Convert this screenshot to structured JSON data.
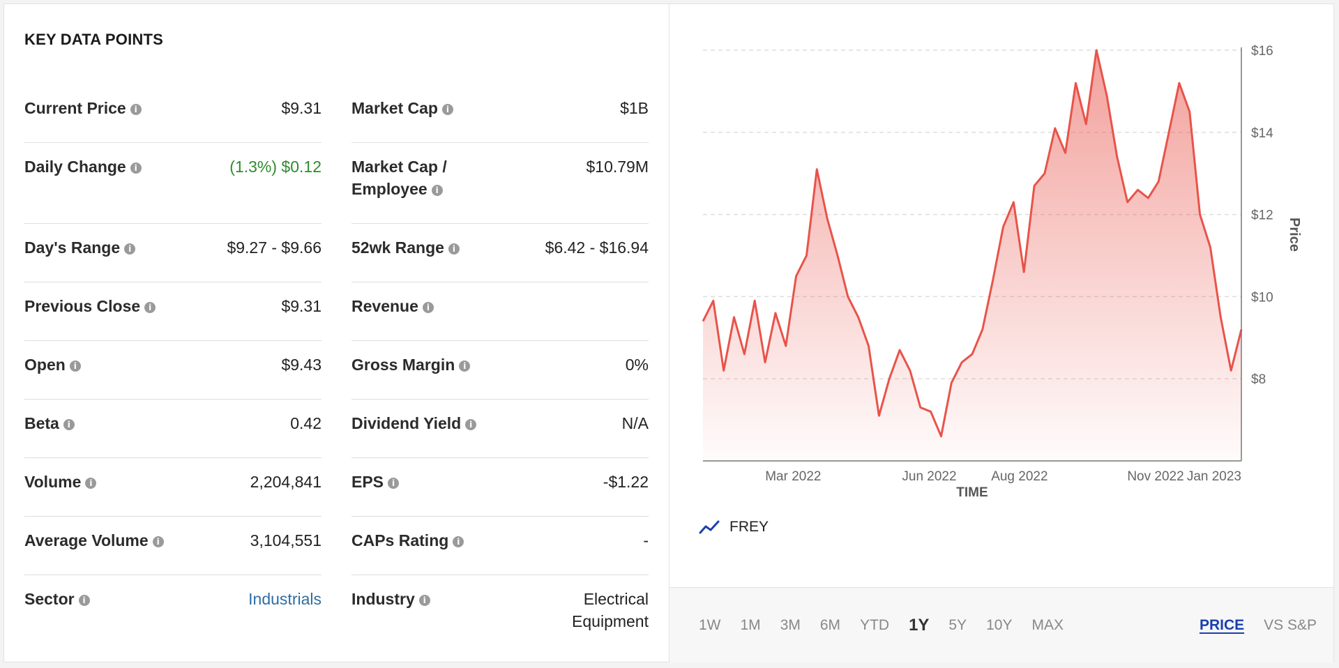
{
  "panel_title": "KEY DATA POINTS",
  "left_column": [
    {
      "label": "Current Price",
      "value": "$9.31"
    },
    {
      "label": "Daily Change",
      "value": "(1.3%) $0.12",
      "value_color": "#2e8b2e"
    },
    {
      "label": "Day's Range",
      "value": "$9.27 - $9.66"
    },
    {
      "label": "Previous Close",
      "value": "$9.31"
    },
    {
      "label": "Open",
      "value": "$9.43"
    },
    {
      "label": "Beta",
      "value": "0.42"
    },
    {
      "label": "Volume",
      "value": "2,204,841"
    },
    {
      "label": "Average Volume",
      "value": "3,104,551"
    },
    {
      "label": "Sector",
      "value": "Industrials",
      "value_color": "#2f6da3"
    }
  ],
  "right_column": [
    {
      "label": "Market Cap",
      "value": "$1B"
    },
    {
      "label": "Market Cap / Employee",
      "value": "$10.79M"
    },
    {
      "label": "52wk Range",
      "value": "$6.42 - $16.94"
    },
    {
      "label": "Revenue",
      "value": ""
    },
    {
      "label": "Gross Margin",
      "value": "0%"
    },
    {
      "label": "Dividend Yield",
      "value": "N/A"
    },
    {
      "label": "EPS",
      "value": "-$1.22"
    },
    {
      "label": "CAPs Rating",
      "value": "-"
    },
    {
      "label": "Industry",
      "value": "Electrical Equipment"
    }
  ],
  "info_icon_glyph": "i",
  "chart_data": {
    "type": "area",
    "xlabel": "TIME",
    "ylabel": "Price",
    "x_tick_labels": [
      "Mar 2022",
      "Jun 2022",
      "Aug 2022",
      "Nov 2022",
      "Jan 2023"
    ],
    "y_tick_labels": [
      "$8",
      "$10",
      "$12",
      "$14",
      "$16"
    ],
    "y_ticks": [
      8,
      10,
      12,
      14,
      16
    ],
    "ylim": [
      6,
      16
    ],
    "grid": "horizontal dashed",
    "line_color": "#e8534a",
    "series": [
      {
        "name": "FREY",
        "x": [
          "2022-01-13",
          "2022-01-20",
          "2022-01-27",
          "2022-02-03",
          "2022-02-10",
          "2022-02-17",
          "2022-02-24",
          "2022-03-03",
          "2022-03-10",
          "2022-03-17",
          "2022-03-24",
          "2022-03-31",
          "2022-04-07",
          "2022-04-14",
          "2022-04-21",
          "2022-04-28",
          "2022-05-05",
          "2022-05-12",
          "2022-05-19",
          "2022-05-26",
          "2022-06-02",
          "2022-06-09",
          "2022-06-16",
          "2022-06-23",
          "2022-06-30",
          "2022-07-07",
          "2022-07-14",
          "2022-07-21",
          "2022-07-28",
          "2022-08-04",
          "2022-08-11",
          "2022-08-18",
          "2022-08-25",
          "2022-09-01",
          "2022-09-08",
          "2022-09-15",
          "2022-09-22",
          "2022-09-29",
          "2022-10-06",
          "2022-10-13",
          "2022-10-20",
          "2022-10-27",
          "2022-11-03",
          "2022-11-10",
          "2022-11-17",
          "2022-11-24",
          "2022-12-01",
          "2022-12-08",
          "2022-12-15",
          "2022-12-22",
          "2022-12-29",
          "2023-01-05",
          "2023-01-12"
        ],
        "values": [
          9.4,
          9.9,
          8.2,
          9.5,
          8.6,
          9.9,
          8.4,
          9.6,
          8.8,
          10.5,
          11.0,
          13.1,
          11.9,
          11.0,
          10.0,
          9.5,
          8.8,
          7.1,
          8.0,
          8.7,
          8.2,
          7.3,
          7.2,
          6.6,
          7.9,
          8.4,
          8.6,
          9.2,
          10.4,
          11.7,
          12.3,
          10.6,
          12.7,
          13.0,
          14.1,
          13.5,
          15.2,
          14.2,
          16.0,
          14.9,
          13.4,
          12.3,
          12.6,
          12.4,
          12.8,
          14.0,
          15.2,
          14.5,
          12.0,
          11.2,
          9.5,
          8.2,
          9.2
        ]
      }
    ]
  },
  "legend": {
    "label": "FREY",
    "icon": "trend-line-icon",
    "icon_color": "#1a3fb0"
  },
  "range_buttons": [
    "1W",
    "1M",
    "3M",
    "6M",
    "YTD",
    "1Y",
    "5Y",
    "10Y",
    "MAX"
  ],
  "active_range": "1Y",
  "mode_buttons": [
    "PRICE",
    "VS S&P"
  ],
  "active_mode": "PRICE"
}
